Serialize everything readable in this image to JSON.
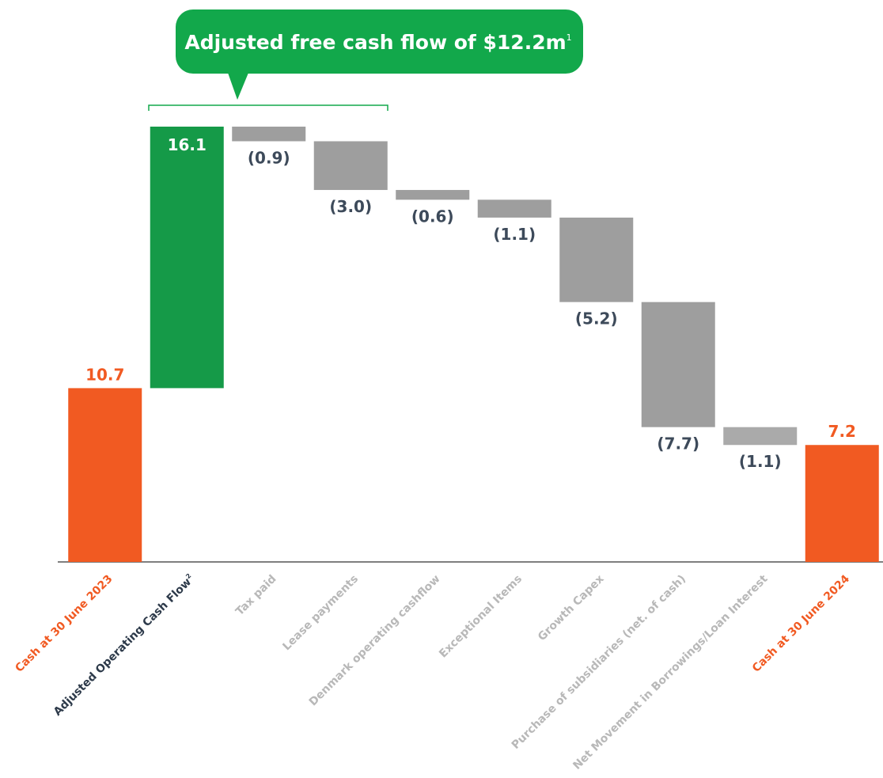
{
  "chart_data": {
    "type": "waterfall",
    "callout": {
      "text": "Adjusted free cash flow of $12.2m",
      "footnote": "1"
    },
    "categories": [
      "Cash at 30 June 2023",
      "Adjusted Operating Cash Flow",
      "Tax paid",
      "Lease payments",
      "Denmark operating cashflow",
      "Exceptional Items",
      "Growth Capex",
      "Purchase of subsidiaries (net. of cash)",
      "Net Movement in Borrowings/Loan Interest",
      "Cash at 30 June 2024"
    ],
    "category_footnotes": [
      null,
      "2",
      null,
      null,
      null,
      null,
      null,
      null,
      null,
      null
    ],
    "values": [
      10.7,
      16.1,
      -0.9,
      -3.0,
      -0.6,
      -1.1,
      -5.2,
      -7.7,
      -1.1,
      7.2
    ],
    "value_labels": [
      "10.7",
      "16.1",
      "(0.9)",
      "(3.0)",
      "(0.6)",
      "(1.1)",
      "(5.2)",
      "(7.7)",
      "(1.1)",
      "7.2"
    ],
    "colors": [
      "#f15a22",
      "#159a48",
      "#9e9e9e",
      "#9e9e9e",
      "#9e9e9e",
      "#9e9e9e",
      "#9e9e9e",
      "#9e9e9e",
      "#aaaaaa",
      "#f15a22"
    ],
    "label_colors": [
      "#f15a22",
      "#2d3a4a",
      "#b8b8b8",
      "#b8b8b8",
      "#b8b8b8",
      "#b8b8b8",
      "#b8b8b8",
      "#b8b8b8",
      "#b8b8b8",
      "#f15a22"
    ]
  }
}
